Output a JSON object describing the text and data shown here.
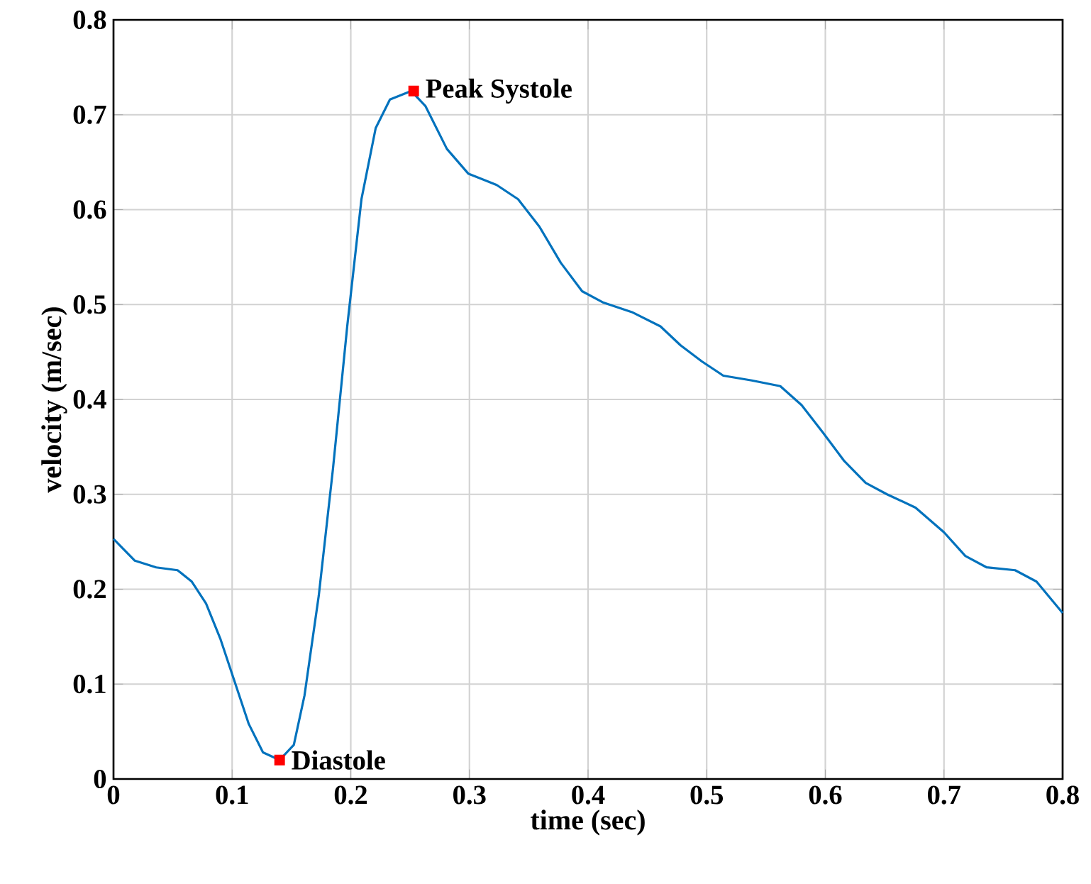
{
  "chart_data": {
    "type": "line",
    "xlabel": "time (sec)",
    "ylabel": "velocity (m/sec)",
    "xlim": [
      0,
      0.8
    ],
    "ylim": [
      0,
      0.8
    ],
    "xticks": [
      0,
      0.1,
      0.2,
      0.3,
      0.4,
      0.5,
      0.6,
      0.7,
      0.8
    ],
    "yticks": [
      0,
      0.1,
      0.2,
      0.3,
      0.4,
      0.5,
      0.6,
      0.7,
      0.8
    ],
    "grid": true,
    "series": [
      {
        "color": "#0072bd",
        "line_style": "solid",
        "x": [
          0,
          0.018,
          0.036,
          0.054,
          0.066,
          0.078,
          0.09,
          0.102,
          0.114,
          0.126,
          0.14,
          0.152,
          0.161,
          0.173,
          0.185,
          0.197,
          0.209,
          0.221,
          0.233,
          0.251,
          0.263,
          0.281,
          0.299,
          0.323,
          0.341,
          0.359,
          0.377,
          0.395,
          0.413,
          0.437,
          0.461,
          0.478,
          0.496,
          0.514,
          0.538,
          0.562,
          0.58,
          0.598,
          0.616,
          0.634,
          0.652,
          0.676,
          0.7,
          0.718,
          0.736,
          0.76,
          0.778,
          0.8
        ],
        "values": [
          0.253,
          0.23,
          0.223,
          0.22,
          0.208,
          0.185,
          0.148,
          0.103,
          0.058,
          0.028,
          0.02,
          0.036,
          0.088,
          0.193,
          0.327,
          0.477,
          0.611,
          0.686,
          0.716,
          0.725,
          0.709,
          0.664,
          0.638,
          0.626,
          0.611,
          0.582,
          0.544,
          0.514,
          0.502,
          0.492,
          0.477,
          0.457,
          0.44,
          0.425,
          0.42,
          0.414,
          0.394,
          0.365,
          0.335,
          0.312,
          0.3,
          0.286,
          0.26,
          0.235,
          0.223,
          0.22,
          0.208,
          0.175
        ]
      },
      {
        "type": "scatter",
        "marker": "square",
        "color": "#ff0000",
        "x": [
          0.14,
          0.253
        ],
        "values": [
          0.02,
          0.725
        ]
      }
    ],
    "annotations": [
      {
        "text": "Peak Systole",
        "x": 0.253,
        "y": 0.725
      },
      {
        "text": "Diastole",
        "x": 0.14,
        "y": 0.02
      }
    ]
  }
}
